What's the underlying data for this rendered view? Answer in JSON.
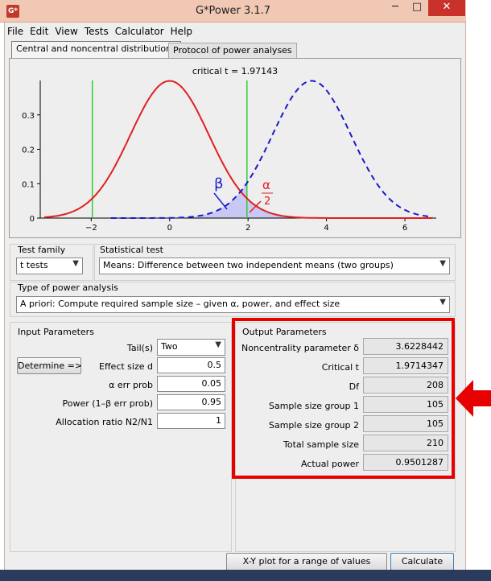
{
  "window": {
    "title": "G*Power 3.1.7",
    "app_icon_label": "G*",
    "minimize": "─",
    "maximize": "□",
    "close": "✕"
  },
  "menu": [
    "File",
    "Edit",
    "View",
    "Tests",
    "Calculator",
    "Help"
  ],
  "tabs": [
    "Central and noncentral distributions",
    "Protocol of power analyses"
  ],
  "plot": {
    "critical_label": "critical t = 1.97143",
    "y_ticks": [
      "0",
      "0.1",
      "0.2",
      "0.3"
    ],
    "x_ticks": [
      "−2",
      "0",
      "2",
      "4",
      "6"
    ],
    "beta_symbol": "β",
    "alpha_symbol": "α",
    "alpha_denominator": "2",
    "colors": {
      "central": "#e02020",
      "noncentral": "#1a1acc",
      "critical": "#33cc33",
      "beta_fill": "#c8c8f4"
    },
    "critical_t": 1.97143,
    "noncentrality": 3.6228442
  },
  "test_family": {
    "label": "Test family",
    "value": "t tests"
  },
  "statistical_test": {
    "label": "Statistical test",
    "value": "Means: Difference between two independent means (two groups)"
  },
  "power_analysis": {
    "label": "Type of power analysis",
    "value": "A priori: Compute required sample size – given α, power, and effect size"
  },
  "input": {
    "title": "Input Parameters",
    "tails": {
      "label": "Tail(s)",
      "value": "Two"
    },
    "determine": "Determine =>",
    "effect_size": {
      "label": "Effect size d",
      "value": "0.5"
    },
    "alpha": {
      "label": "α err prob",
      "value": "0.05"
    },
    "power": {
      "label": "Power (1–β err prob)",
      "value": "0.95"
    },
    "allocation": {
      "label": "Allocation ratio N2/N1",
      "value": "1"
    }
  },
  "output": {
    "title": "Output Parameters",
    "rows": [
      {
        "label": "Noncentrality parameter δ",
        "value": "3.6228442"
      },
      {
        "label": "Critical t",
        "value": "1.9714347"
      },
      {
        "label": "Df",
        "value": "208"
      },
      {
        "label": "Sample size group 1",
        "value": "105"
      },
      {
        "label": "Sample size group 2",
        "value": "105"
      },
      {
        "label": "Total sample size",
        "value": "210"
      },
      {
        "label": "Actual power",
        "value": "0.9501287"
      }
    ]
  },
  "buttons": {
    "xy_plot": "X-Y plot for a range of values",
    "calculate": "Calculate"
  },
  "highlight_color": "#e60000"
}
